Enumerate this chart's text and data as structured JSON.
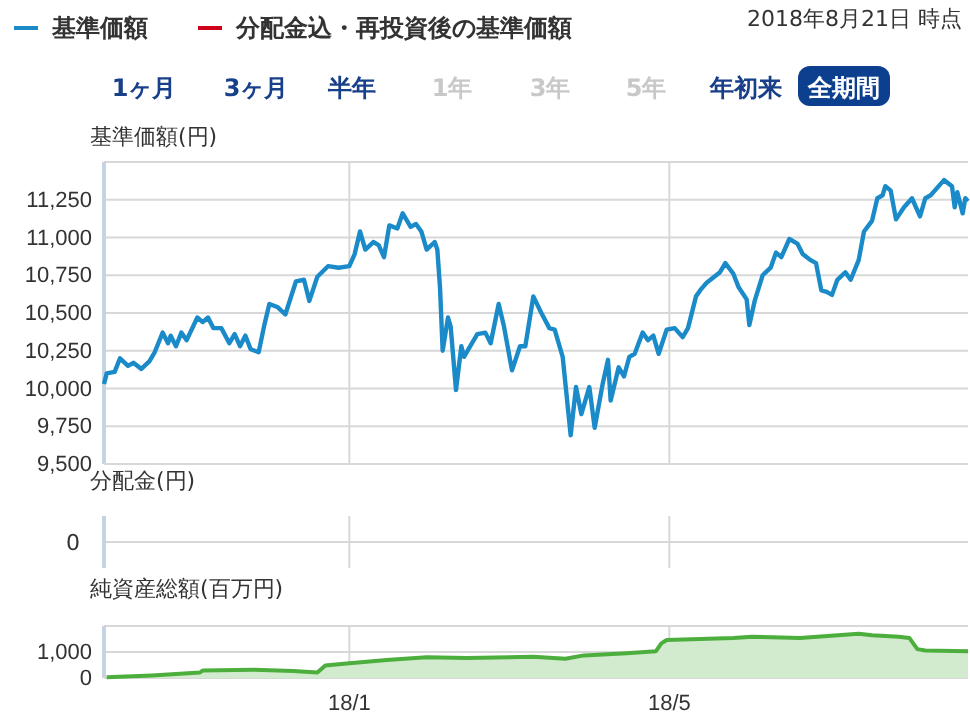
{
  "chart_data": [
    {
      "type": "line",
      "ylabel": "基準価額(円)",
      "legend": "top",
      "grid": true,
      "tick_labels": "y",
      "annotations": [
        "2018年8月21日 時点",
        "1ヶ月",
        "3ヶ月",
        "半年",
        "1年",
        "3年",
        "5年",
        "年初来",
        "全期間"
      ],
      "xlim": [
        "2017-10-01",
        "2018-08-21"
      ],
      "xticks": [
        {
          "value": "2018-01-01",
          "label": null
        },
        {
          "value": "2018-05-01",
          "label": null
        }
      ],
      "ylim": [
        9500,
        11500
      ],
      "yticks": [
        {
          "value": 9500,
          "label": "9,500"
        },
        {
          "value": 9750,
          "label": "9,750"
        },
        {
          "value": 10000,
          "label": "10,000"
        },
        {
          "value": 10250,
          "label": "10,250"
        },
        {
          "value": 10500,
          "label": "10,500"
        },
        {
          "value": 10750,
          "label": "10,750"
        },
        {
          "value": 11000,
          "label": "11,000"
        },
        {
          "value": 11250,
          "label": "11,250"
        },
        {
          "value": 11500,
          "label": null
        }
      ],
      "x": [
        "2017-10-01",
        "2017-10-02",
        "2017-10-05",
        "2017-10-07",
        "2017-10-10",
        "2017-10-12",
        "2017-10-15",
        "2017-10-18",
        "2017-10-20",
        "2017-10-23",
        "2017-10-25",
        "2017-10-26",
        "2017-10-28",
        "2017-10-30",
        "2017-11-01",
        "2017-11-05",
        "2017-11-07",
        "2017-11-09",
        "2017-11-11",
        "2017-11-14",
        "2017-11-17",
        "2017-11-19",
        "2017-11-21",
        "2017-11-23",
        "2017-11-25",
        "2017-11-28",
        "2017-11-30",
        "2017-12-02",
        "2017-12-05",
        "2017-12-08",
        "2017-12-12",
        "2017-12-15",
        "2017-12-17",
        "2017-12-20",
        "2017-12-24",
        "2017-12-28",
        "2018-01-01",
        "2018-01-03",
        "2018-01-05",
        "2018-01-07",
        "2018-01-10",
        "2018-01-12",
        "2018-01-14",
        "2018-01-16",
        "2018-01-19",
        "2018-01-21",
        "2018-01-24",
        "2018-01-26",
        "2018-01-28",
        "2018-01-30",
        "2018-02-02",
        "2018-02-03",
        "2018-02-04",
        "2018-02-05",
        "2018-02-07",
        "2018-02-08",
        "2018-02-10",
        "2018-02-12",
        "2018-02-13",
        "2018-02-16",
        "2018-02-18",
        "2018-02-21",
        "2018-02-23",
        "2018-02-26",
        "2018-02-28",
        "2018-03-03",
        "2018-03-06",
        "2018-03-08",
        "2018-03-11",
        "2018-03-14",
        "2018-03-17",
        "2018-03-19",
        "2018-03-22",
        "2018-03-25",
        "2018-03-27",
        "2018-03-29",
        "2018-04-01",
        "2018-04-03",
        "2018-04-06",
        "2018-04-08",
        "2018-04-09",
        "2018-04-12",
        "2018-04-14",
        "2018-04-16",
        "2018-04-18",
        "2018-04-21",
        "2018-04-23",
        "2018-04-25",
        "2018-04-27",
        "2018-04-30",
        "2018-05-03",
        "2018-05-06",
        "2018-05-08",
        "2018-05-11",
        "2018-05-13",
        "2018-05-15",
        "2018-05-20",
        "2018-05-22",
        "2018-05-25",
        "2018-05-27",
        "2018-05-30",
        "2018-05-31",
        "2018-06-02",
        "2018-06-05",
        "2018-06-08",
        "2018-06-10",
        "2018-06-12",
        "2018-06-15",
        "2018-06-18",
        "2018-06-20",
        "2018-06-23",
        "2018-06-25",
        "2018-06-27",
        "2018-06-29",
        "2018-07-01",
        "2018-07-03",
        "2018-07-06",
        "2018-07-08",
        "2018-07-11",
        "2018-07-13",
        "2018-07-16",
        "2018-07-18",
        "2018-07-20",
        "2018-07-21",
        "2018-07-23",
        "2018-07-25",
        "2018-07-28",
        "2018-07-31",
        "2018-08-03",
        "2018-08-05",
        "2018-08-07",
        "2018-08-10",
        "2018-08-12",
        "2018-08-15",
        "2018-08-16",
        "2018-08-17",
        "2018-08-19",
        "2018-08-20",
        "2018-08-21"
      ],
      "series": [
        {
          "name": "基準価額",
          "color": "#1a8bc8",
          "values": [
            10030,
            10100,
            10110,
            10200,
            10150,
            10170,
            10130,
            10180,
            10240,
            10370,
            10300,
            10350,
            10280,
            10370,
            10320,
            10470,
            10440,
            10470,
            10400,
            10400,
            10300,
            10360,
            10280,
            10350,
            10260,
            10240,
            10410,
            10560,
            10540,
            10490,
            10710,
            10720,
            10580,
            10740,
            10810,
            10800,
            10810,
            10890,
            11040,
            10920,
            10970,
            10950,
            10870,
            11080,
            11060,
            11160,
            11070,
            11090,
            11040,
            10920,
            10970,
            10920,
            10670,
            10250,
            10470,
            10410,
            9990,
            10280,
            10210,
            10300,
            10360,
            10370,
            10300,
            10560,
            10410,
            10120,
            10280,
            10280,
            10610,
            10500,
            10400,
            10390,
            10210,
            9690,
            10010,
            9830,
            10010,
            9740,
            10030,
            10190,
            9920,
            10140,
            10080,
            10210,
            10230,
            10370,
            10320,
            10350,
            10230,
            10390,
            10400,
            10340,
            10400,
            10610,
            10660,
            10700,
            10770,
            10830,
            10760,
            10670,
            10590,
            10420,
            10580,
            10750,
            10800,
            10900,
            10870,
            10990,
            10960,
            10890,
            10850,
            10830,
            10650,
            10640,
            10620,
            10720,
            10770,
            10720,
            10850,
            11040,
            11110,
            11260,
            11280,
            11340,
            11310,
            11120,
            11200,
            11260,
            11140,
            11260,
            11280,
            11340,
            11380,
            11340,
            11200,
            11300,
            11160,
            11260,
            11240
          ]
        },
        {
          "name": "分配金込・再投資後の基準価額",
          "color": "#d0021b",
          "values": [
            null,
            null,
            null,
            null,
            null,
            null,
            null,
            null,
            null,
            null,
            null,
            null,
            null,
            null,
            null,
            null,
            null,
            null,
            null,
            null,
            null,
            null,
            null,
            null,
            null,
            null,
            null,
            null,
            null,
            null,
            null,
            null,
            null,
            null,
            null,
            null,
            null,
            null,
            null,
            null,
            null,
            null,
            null,
            null,
            null,
            null,
            null,
            null,
            null,
            null,
            null,
            null,
            null,
            null,
            null,
            null,
            null,
            null,
            null,
            null,
            null,
            null,
            null,
            null,
            null,
            null,
            null,
            null,
            null,
            null,
            null,
            null,
            null,
            null,
            null,
            null,
            null,
            null,
            null,
            null,
            null,
            null,
            null,
            null,
            null,
            null,
            null,
            null,
            null,
            null,
            null,
            null,
            null,
            null,
            null,
            null,
            null,
            null,
            null,
            null,
            null,
            null,
            null,
            null,
            null,
            null,
            null,
            null,
            null,
            null,
            null,
            null,
            null,
            null,
            null,
            null,
            null,
            null,
            null,
            null,
            null,
            null,
            null,
            null,
            null,
            null,
            null,
            null,
            null,
            null,
            null,
            null,
            null,
            null,
            null,
            null,
            null,
            null,
            null
          ]
        }
      ]
    },
    {
      "type": "other",
      "ylabel": "分配金(円)",
      "annotations": [
        "0"
      ]
    },
    {
      "type": "area",
      "ylabel": "純資産総額(百万円)",
      "grid": true,
      "xlim": [
        "2017-10-01",
        "2018-08-21"
      ],
      "xticks": [
        {
          "value": "2018-01-01",
          "label": "18/1"
        },
        {
          "value": "2018-05-01",
          "label": "18/5"
        }
      ],
      "ylim": [
        0,
        2000
      ],
      "yticks": [
        0,
        {
          "value": 1000,
          "label": "1,000"
        },
        {
          "value": 2000,
          "label": null
        }
      ],
      "x": [
        "2017-10-02",
        "2017-10-19",
        "2017-11-06",
        "2017-11-07",
        "2017-11-26",
        "2017-12-11",
        "2017-12-20",
        "2017-12-23",
        "2017-12-31",
        "2018-01-15",
        "2018-01-30",
        "2018-02-14",
        "2018-03-11",
        "2018-03-23",
        "2018-03-30",
        "2018-04-15",
        "2018-04-26",
        "2018-04-28",
        "2018-04-30",
        "2018-05-25",
        "2018-06-01",
        "2018-06-19",
        "2018-07-11",
        "2018-07-16",
        "2018-07-26",
        "2018-07-30",
        "2018-08-02",
        "2018-08-05",
        "2018-08-21"
      ],
      "series": [
        {
          "color": "#4cae3c",
          "values": [
            30,
            100,
            210,
            290,
            320,
            270,
            210,
            480,
            560,
            690,
            800,
            770,
            820,
            740,
            870,
            950,
            1030,
            1330,
            1460,
            1540,
            1590,
            1540,
            1700,
            1640,
            1590,
            1540,
            1110,
            1060,
            1030
          ]
        }
      ]
    }
  ]
}
